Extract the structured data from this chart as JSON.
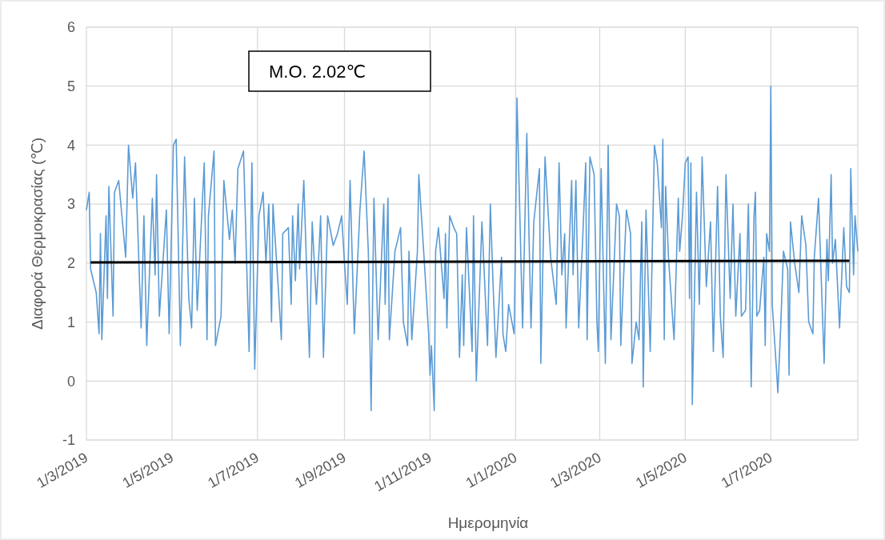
{
  "chart_data": {
    "type": "line",
    "xlabel": "Ημερομηνία",
    "ylabel": "Διαφορά Θερμοκρασίας (℃)",
    "annotations": [
      "M.O.  2.02℃"
    ],
    "grid": true,
    "xlim": [
      "2019-03-01",
      "2020-09-01"
    ],
    "xticks": [
      {
        "value": "2019-03-01",
        "label": "1/3/2019"
      },
      {
        "value": "2019-05-01",
        "label": "1/5/2019"
      },
      {
        "value": "2019-07-01",
        "label": "1/7/2019"
      },
      {
        "value": "2019-09-01",
        "label": "1/9/2019"
      },
      {
        "value": "2019-11-01",
        "label": "1/11/2019"
      },
      {
        "value": "2020-01-01",
        "label": "1/1/2020"
      },
      {
        "value": "2020-03-01",
        "label": "1/3/2020"
      },
      {
        "value": "2020-05-01",
        "label": "1/5/2020"
      },
      {
        "value": "2020-07-01",
        "label": "1/7/2020"
      }
    ],
    "ylim": [
      -1,
      6
    ],
    "yticks": [
      -1,
      0,
      1,
      2,
      3,
      4,
      5,
      6
    ],
    "series": [
      {
        "color": "#5b9bd5",
        "x": [
          "2019-03-01",
          "2019-03-03",
          "2019-03-04",
          "2019-03-08",
          "2019-03-10",
          "2019-03-11",
          "2019-03-12",
          "2019-03-15",
          "2019-03-16",
          "2019-03-17",
          "2019-03-20",
          "2019-03-21",
          "2019-03-24",
          "2019-03-29",
          "2019-03-31",
          "2019-04-03",
          "2019-04-05",
          "2019-04-09",
          "2019-04-11",
          "2019-04-13",
          "2019-04-17",
          "2019-04-19",
          "2019-04-20",
          "2019-04-22",
          "2019-04-27",
          "2019-04-29",
          "2019-05-02",
          "2019-05-04",
          "2019-05-07",
          "2019-05-10",
          "2019-05-13",
          "2019-05-15",
          "2019-05-17",
          "2019-05-19",
          "2019-05-24",
          "2019-05-26",
          "2019-05-27",
          "2019-05-31",
          "2019-06-01",
          "2019-06-05",
          "2019-06-07",
          "2019-06-11",
          "2019-06-13",
          "2019-06-15",
          "2019-06-17",
          "2019-06-21",
          "2019-06-25",
          "2019-06-27",
          "2019-06-29",
          "2019-07-02",
          "2019-07-05",
          "2019-07-07",
          "2019-07-09",
          "2019-07-11",
          "2019-07-12",
          "2019-07-16",
          "2019-07-18",
          "2019-07-19",
          "2019-07-23",
          "2019-07-25",
          "2019-07-26",
          "2019-07-28",
          "2019-07-30",
          "2019-07-31",
          "2019-08-03",
          "2019-08-07",
          "2019-08-09",
          "2019-08-12",
          "2019-08-15",
          "2019-08-17",
          "2019-08-20",
          "2019-08-24",
          "2019-08-27",
          "2019-08-30",
          "2019-09-01",
          "2019-09-03",
          "2019-09-05",
          "2019-09-08",
          "2019-09-12",
          "2019-09-15",
          "2019-09-18",
          "2019-09-20",
          "2019-09-22",
          "2019-09-25",
          "2019-09-29",
          "2019-09-30",
          "2019-10-02",
          "2019-10-03",
          "2019-10-07",
          "2019-10-11",
          "2019-10-13",
          "2019-10-16",
          "2019-10-17",
          "2019-10-19",
          "2019-10-23",
          "2019-10-24",
          "2019-10-28",
          "2019-10-31",
          "2019-11-01",
          "2019-11-02",
          "2019-11-04",
          "2019-11-05",
          "2019-11-07",
          "2019-11-11",
          "2019-11-12",
          "2019-11-13",
          "2019-11-15",
          "2019-11-18",
          "2019-11-20",
          "2019-11-22",
          "2019-11-24",
          "2019-11-25",
          "2019-11-27",
          "2019-12-01",
          "2019-12-02",
          "2019-12-04",
          "2019-12-08",
          "2019-12-12",
          "2019-12-14",
          "2019-12-16",
          "2019-12-18",
          "2019-12-22",
          "2019-12-23",
          "2019-12-25",
          "2019-12-27",
          "2019-12-31",
          "2020-01-01",
          "2020-01-02",
          "2020-01-06",
          "2020-01-09",
          "2020-01-12",
          "2020-01-14",
          "2020-01-18",
          "2020-01-19",
          "2020-01-22",
          "2020-01-26",
          "2020-01-30",
          "2020-02-01",
          "2020-02-03",
          "2020-02-05",
          "2020-02-06",
          "2020-02-10",
          "2020-02-11",
          "2020-02-13",
          "2020-02-15",
          "2020-02-18",
          "2020-02-20",
          "2020-02-21",
          "2020-02-23",
          "2020-02-26",
          "2020-02-28",
          "2020-02-29",
          "2020-03-02",
          "2020-03-05",
          "2020-03-07",
          "2020-03-09",
          "2020-03-13",
          "2020-03-15",
          "2020-03-16",
          "2020-03-20",
          "2020-03-23",
          "2020-03-24",
          "2020-03-27",
          "2020-03-29",
          "2020-03-31",
          "2020-04-01",
          "2020-04-03",
          "2020-04-06",
          "2020-04-09",
          "2020-04-11",
          "2020-04-14",
          "2020-04-15",
          "2020-04-16",
          "2020-04-17",
          "2020-04-19",
          "2020-04-23",
          "2020-04-26",
          "2020-04-27",
          "2020-04-29",
          "2020-05-01",
          "2020-05-03",
          "2020-05-04",
          "2020-05-05",
          "2020-05-06",
          "2020-05-09",
          "2020-05-11",
          "2020-05-13",
          "2020-05-16",
          "2020-05-19",
          "2020-05-21",
          "2020-05-24",
          "2020-05-26",
          "2020-05-28",
          "2020-05-30",
          "2020-06-02",
          "2020-06-04",
          "2020-06-06",
          "2020-06-09",
          "2020-06-10",
          "2020-06-13",
          "2020-06-15",
          "2020-06-17",
          "2020-06-19",
          "2020-06-20",
          "2020-06-21",
          "2020-06-23",
          "2020-06-26",
          "2020-06-27",
          "2020-06-28",
          "2020-06-30",
          "2020-07-01",
          "2020-07-02",
          "2020-07-05",
          "2020-07-06",
          "2020-07-08",
          "2020-07-10",
          "2020-07-13",
          "2020-07-14",
          "2020-07-15",
          "2020-07-18",
          "2020-07-21",
          "2020-07-23",
          "2020-07-26",
          "2020-07-28",
          "2020-07-31",
          "2020-08-01",
          "2020-08-04",
          "2020-08-06",
          "2020-08-08",
          "2020-08-10",
          "2020-08-11",
          "2020-08-13",
          "2020-08-14",
          "2020-08-16",
          "2020-08-19",
          "2020-08-22",
          "2020-08-24",
          "2020-08-26",
          "2020-08-27",
          "2020-08-29",
          "2020-08-30",
          "2020-09-01"
        ],
        "values": [
          2.9,
          3.2,
          1.9,
          1.5,
          0.8,
          2.5,
          0.7,
          2.8,
          1.4,
          3.3,
          1.1,
          3.2,
          3.4,
          2.1,
          4.0,
          3.1,
          3.7,
          0.9,
          2.8,
          0.6,
          3.1,
          1.8,
          3.5,
          1.1,
          2.9,
          0.8,
          4.0,
          4.1,
          0.6,
          3.8,
          1.4,
          0.9,
          3.1,
          1.2,
          3.7,
          0.7,
          2.8,
          3.9,
          0.6,
          1.1,
          3.4,
          2.4,
          2.9,
          2.0,
          3.6,
          3.9,
          0.5,
          3.7,
          0.2,
          2.8,
          3.2,
          2.0,
          3.0,
          1.0,
          3.0,
          1.5,
          0.7,
          2.5,
          2.6,
          1.3,
          2.8,
          1.7,
          3.0,
          1.9,
          3.4,
          0.4,
          2.7,
          1.3,
          2.8,
          0.4,
          2.8,
          2.3,
          2.5,
          2.8,
          2.0,
          1.3,
          3.4,
          0.8,
          2.9,
          3.9,
          2.2,
          -0.5,
          3.1,
          0.7,
          3.0,
          1.3,
          3.1,
          0.7,
          2.2,
          2.6,
          1.0,
          0.6,
          2.2,
          0.7,
          2.2,
          3.5,
          2.0,
          0.8,
          0.1,
          0.6,
          -0.5,
          2.2,
          2.6,
          1.4,
          2.5,
          0.9,
          2.8,
          2.6,
          2.5,
          0.4,
          1.8,
          0.6,
          2.6,
          0.5,
          2.8,
          0.0,
          2.7,
          0.6,
          3.0,
          1.6,
          0.4,
          2.1,
          0.8,
          0.5,
          1.3,
          0.8,
          2.6,
          4.8,
          0.9,
          4.2,
          0.9,
          2.7,
          3.6,
          0.3,
          3.8,
          2.1,
          1.3,
          3.7,
          1.8,
          2.5,
          0.9,
          3.4,
          1.8,
          3.4,
          0.9,
          2.5,
          3.7,
          0.7,
          3.8,
          3.5,
          1.0,
          0.5,
          3.6,
          0.3,
          4.0,
          0.7,
          3.0,
          2.8,
          0.6,
          2.9,
          2.5,
          0.3,
          1.0,
          0.7,
          2.7,
          -0.1,
          2.9,
          0.5,
          4.0,
          3.7,
          2.6,
          4.1,
          0.7,
          3.3,
          2.1,
          0.7,
          3.1,
          2.2,
          2.8,
          3.7,
          3.8,
          1.4,
          3.7,
          -0.4,
          3.2,
          1.3,
          3.8,
          1.6,
          2.7,
          0.5,
          3.3,
          1.1,
          0.4,
          3.5,
          1.4,
          3.0,
          1.1,
          2.5,
          1.1,
          1.2,
          3.0,
          -0.1,
          2.8,
          3.2,
          1.1,
          1.2,
          2.1,
          0.6,
          2.5,
          2.2,
          5.0,
          1.3,
          0.2,
          -0.2,
          0.9,
          2.2,
          1.9,
          0.1,
          2.7,
          2.0,
          1.5,
          2.8,
          2.3,
          1.0,
          0.8,
          2.1,
          3.1,
          1.7,
          0.3,
          2.4,
          1.7,
          3.5,
          2.0,
          2.4,
          0.9,
          2.6,
          1.6,
          1.5,
          3.6,
          1.8,
          2.8,
          2.2
        ]
      },
      {
        "color": "#000000",
        "x": [
          "2019-03-04",
          "2020-08-26"
        ],
        "values": [
          2.01,
          2.04
        ]
      }
    ]
  }
}
